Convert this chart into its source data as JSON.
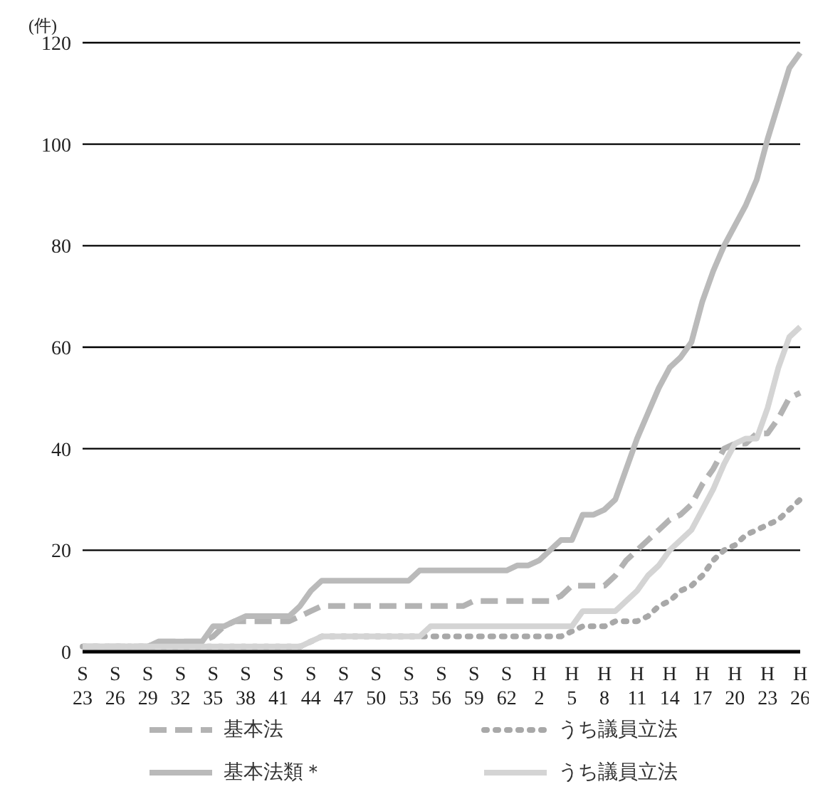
{
  "chart_data": {
    "type": "line",
    "ylabel": "(件)",
    "categories": [
      "S 23",
      null,
      null,
      "S 26",
      null,
      null,
      "S 29",
      null,
      null,
      "S 32",
      null,
      null,
      "S 35",
      null,
      null,
      "S 38",
      null,
      null,
      "S 41",
      null,
      null,
      "S 44",
      null,
      null,
      "S 47",
      null,
      null,
      "S 50",
      null,
      null,
      "S 53",
      null,
      null,
      "S 56",
      null,
      null,
      "S 59",
      null,
      null,
      "S 62",
      null,
      null,
      "H 2",
      null,
      null,
      "H 5",
      null,
      null,
      "H 8",
      null,
      null,
      "H 11",
      null,
      null,
      "H 14",
      null,
      null,
      "H 17",
      null,
      null,
      "H 20",
      null,
      null,
      "H 23",
      null,
      null,
      "H 26"
    ],
    "series": [
      {
        "name": "基本法",
        "color": "#b3b3b3",
        "line_style": "dashed",
        "values": [
          1,
          1,
          1,
          1,
          1,
          1,
          1,
          2,
          2,
          2,
          2,
          2,
          3,
          5,
          6,
          6,
          6,
          6,
          6,
          6,
          7,
          8,
          9,
          9,
          9,
          9,
          9,
          9,
          9,
          9,
          9,
          9,
          9,
          9,
          9,
          9,
          10,
          10,
          10,
          10,
          10,
          10,
          10,
          10,
          11,
          13,
          13,
          13,
          13,
          15,
          18,
          20,
          22,
          24,
          26,
          27,
          29,
          33,
          36,
          40,
          41,
          41,
          43,
          43,
          46,
          50,
          51
        ]
      },
      {
        "name": "うち議員立法",
        "color": "#a8a8a8",
        "line_style": "dotted",
        "values": [
          1,
          1,
          1,
          1,
          1,
          1,
          1,
          1,
          1,
          1,
          1,
          1,
          1,
          1,
          1,
          1,
          1,
          1,
          1,
          1,
          1,
          2,
          3,
          3,
          3,
          3,
          3,
          3,
          3,
          3,
          3,
          3,
          3,
          3,
          3,
          3,
          3,
          3,
          3,
          3,
          3,
          3,
          3,
          3,
          3,
          4,
          5,
          5,
          5,
          6,
          6,
          6,
          7,
          9,
          10,
          12,
          13,
          15,
          18,
          20,
          21,
          23,
          24,
          25,
          26,
          28,
          30
        ]
      },
      {
        "name": "基本法類＊",
        "color": "#bababa",
        "line_style": "solid",
        "values": [
          1,
          1,
          1,
          1,
          1,
          1,
          1,
          2,
          2,
          2,
          2,
          2,
          5,
          5,
          6,
          7,
          7,
          7,
          7,
          7,
          9,
          12,
          14,
          14,
          14,
          14,
          14,
          14,
          14,
          14,
          14,
          16,
          16,
          16,
          16,
          16,
          16,
          16,
          16,
          16,
          17,
          17,
          18,
          20,
          22,
          22,
          27,
          27,
          28,
          30,
          36,
          42,
          47,
          52,
          56,
          58,
          61,
          69,
          75,
          80,
          84,
          88,
          93,
          101,
          108,
          115,
          118
        ]
      },
      {
        "name": "うち議員立法",
        "color": "#d4d4d4",
        "line_style": "solid",
        "values": [
          1,
          1,
          1,
          1,
          1,
          1,
          1,
          1,
          1,
          1,
          1,
          1,
          1,
          1,
          1,
          1,
          1,
          1,
          1,
          1,
          1,
          2,
          3,
          3,
          3,
          3,
          3,
          3,
          3,
          3,
          3,
          3,
          5,
          5,
          5,
          5,
          5,
          5,
          5,
          5,
          5,
          5,
          5,
          5,
          5,
          5,
          8,
          8,
          8,
          8,
          10,
          12,
          15,
          17,
          20,
          22,
          24,
          28,
          32,
          37,
          41,
          42,
          42,
          48,
          56,
          62,
          64
        ]
      }
    ],
    "ylim": [
      0,
      120
    ],
    "yticks": [
      0,
      20,
      40,
      60,
      80,
      100,
      120
    ],
    "grid": "y",
    "legend": "bottom",
    "marker": "none"
  }
}
